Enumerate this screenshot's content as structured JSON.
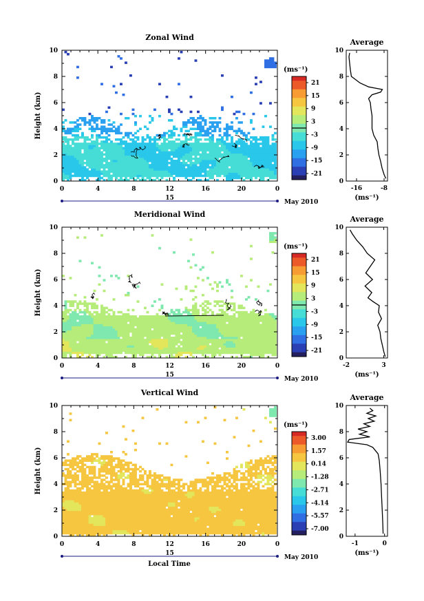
{
  "figure": {
    "common_xlabel": "Local Time",
    "date_label": "May 2010",
    "colors": {
      "colormap": [
        "#241f5e",
        "#2b3fb5",
        "#2f6fe3",
        "#2aa0f0",
        "#29c7ea",
        "#46ddd6",
        "#7ee8ae",
        "#b6ec7a",
        "#e3e65a",
        "#f6c640",
        "#f79b33",
        "#ec5a2a",
        "#d82a25"
      ]
    }
  },
  "chart_data": [
    {
      "type": "heatmap",
      "title": "Zonal Wind",
      "xlabel": "Local Time",
      "ylabel": "Height (km)",
      "x_ticks": [
        "0",
        "4",
        "8",
        "12",
        "16",
        "20",
        "0"
      ],
      "x_range": [
        0,
        24
      ],
      "day_label": "15",
      "date_label": "May 2010",
      "y_ticks": [
        "0",
        "2",
        "4",
        "6",
        "8",
        "10"
      ],
      "ylim": [
        0,
        10
      ],
      "colorbar": {
        "unit": "(ms⁻¹)",
        "ticks": [
          "21",
          "15",
          "9",
          "3",
          "-3",
          "-9",
          "-15",
          "-21"
        ],
        "range": [
          -24,
          24
        ],
        "zero_line": true
      },
      "side_title": "Average",
      "side_xlabel": "(ms⁻¹)",
      "side_xticks": [
        "-16",
        "-8"
      ],
      "side_xlim": [
        -19,
        -7
      ],
      "side_profile": {
        "height": [
          0.2,
          0.5,
          1.0,
          1.5,
          2.0,
          2.5,
          3.0,
          3.5,
          4.0,
          4.5,
          5.0,
          5.5,
          6.0,
          6.3,
          6.6,
          6.8,
          7.0,
          7.2,
          7.5,
          8.0,
          8.5,
          9.0,
          9.5,
          9.8
        ],
        "value": [
          -7.5,
          -8.0,
          -8.6,
          -9.0,
          -9.5,
          -9.8,
          -10.0,
          -11.0,
          -11.5,
          -11.5,
          -11.5,
          -11.8,
          -12.0,
          -12.5,
          -11.5,
          -9.0,
          -8.5,
          -12.5,
          -15.0,
          -17.5,
          -17.8,
          -18.0,
          -18.2,
          -18.0
        ]
      }
    },
    {
      "type": "heatmap",
      "title": "Meridional Wind",
      "xlabel": "Local Time",
      "ylabel": "Height (km)",
      "x_ticks": [
        "0",
        "4",
        "8",
        "12",
        "16",
        "20",
        "0"
      ],
      "x_range": [
        0,
        24
      ],
      "day_label": "15",
      "date_label": "May 2010",
      "y_ticks": [
        "0",
        "2",
        "4",
        "6",
        "8",
        "10"
      ],
      "ylim": [
        0,
        10
      ],
      "colorbar": {
        "unit": "(ms⁻¹)",
        "ticks": [
          "21",
          "15",
          "9",
          "3",
          "-3",
          "-9",
          "-15",
          "-21"
        ],
        "range": [
          -24,
          24
        ],
        "zero_line": true
      },
      "side_title": "Average",
      "side_xlabel": "(ms⁻¹)",
      "side_xticks": [
        "-2",
        "3"
      ],
      "side_xlim": [
        -2,
        3.5
      ],
      "side_profile": {
        "height": [
          0.1,
          0.5,
          1.0,
          1.5,
          2.0,
          2.5,
          3.0,
          3.5,
          4.0,
          4.3,
          4.6,
          5.0,
          5.5,
          6.0,
          6.5,
          7.0,
          7.5,
          8.0,
          8.5,
          9.0,
          9.5,
          9.8
        ],
        "value": [
          3.2,
          3.0,
          2.8,
          2.6,
          2.5,
          2.2,
          2.7,
          2.3,
          2.4,
          1.6,
          0.9,
          1.4,
          0.5,
          1.5,
          0.6,
          1.2,
          1.8,
          0.8,
          0.2,
          -0.6,
          -1.2,
          -1.5
        ]
      }
    },
    {
      "type": "heatmap",
      "title": "Vertical Wind",
      "xlabel": "Local Time",
      "ylabel": "Height (km)",
      "x_ticks": [
        "0",
        "4",
        "8",
        "12",
        "16",
        "20",
        "0"
      ],
      "x_range": [
        0,
        24
      ],
      "day_label": "15",
      "date_label": "May 2010",
      "y_ticks": [
        "0",
        "2",
        "4",
        "6",
        "8",
        "10"
      ],
      "ylim": [
        0,
        10
      ],
      "colorbar": {
        "unit": "(ms⁻¹)",
        "ticks": [
          "3.00",
          "1.57",
          "0.14",
          "-1.28",
          "-2.71",
          "-4.14",
          "-5.57",
          "-7.00"
        ],
        "range": [
          -7.5,
          3.5
        ],
        "zero_line": false
      },
      "side_title": "Average",
      "side_xlabel": "(ms⁻¹)",
      "side_xticks": [
        "-1",
        "0"
      ],
      "side_xlim": [
        -1.3,
        0.1
      ],
      "side_profile": {
        "height": [
          0.2,
          1.0,
          2.0,
          3.0,
          4.0,
          5.0,
          5.8,
          6.3,
          6.8,
          7.0,
          7.2,
          7.4,
          7.6,
          7.8,
          8.0,
          8.2,
          8.4,
          8.6,
          8.8,
          9.0,
          9.2,
          9.4,
          9.6,
          9.8
        ],
        "value": [
          -0.05,
          -0.06,
          -0.08,
          -0.1,
          -0.12,
          -0.15,
          -0.18,
          -0.22,
          -0.4,
          -0.6,
          -1.25,
          -1.2,
          -0.5,
          -0.85,
          -0.6,
          -0.9,
          -0.5,
          -0.7,
          -0.35,
          -0.55,
          -0.3,
          -0.6,
          -0.4,
          -0.5
        ]
      }
    }
  ]
}
